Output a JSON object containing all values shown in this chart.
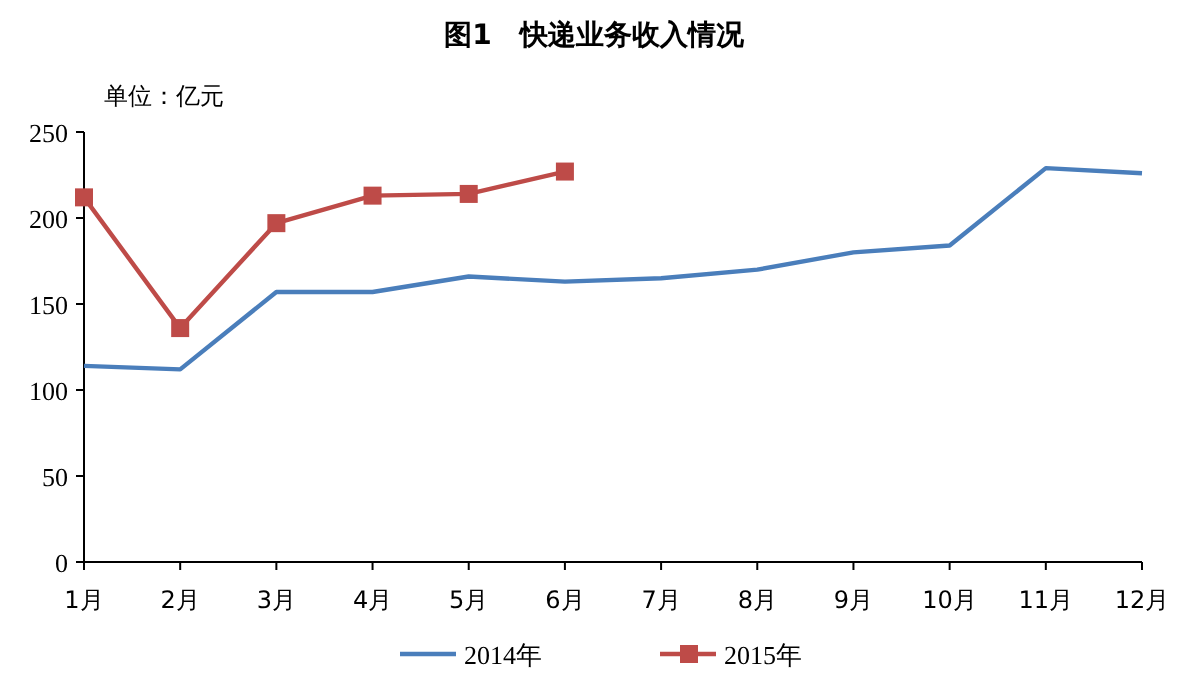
{
  "chart_data": {
    "type": "line",
    "title": "图1　快递业务收入情况",
    "annotations": [
      "单位：亿元"
    ],
    "categories": [
      "1月",
      "2月",
      "3月",
      "4月",
      "5月",
      "6月",
      "7月",
      "8月",
      "9月",
      "10月",
      "11月",
      "12月"
    ],
    "series": [
      {
        "name": "2014年",
        "color": "#4a7ebb",
        "marker": "none",
        "values": [
          114,
          112,
          157,
          157,
          166,
          163,
          165,
          170,
          180,
          184,
          229,
          226
        ]
      },
      {
        "name": "2015年",
        "color": "#be4b48",
        "marker": "square",
        "values": [
          212,
          136,
          197,
          213,
          214,
          227,
          null,
          null,
          null,
          null,
          null,
          null
        ]
      }
    ],
    "ylim": [
      0,
      250
    ],
    "yticks": [
      0,
      50,
      100,
      150,
      200,
      250
    ],
    "grid": false,
    "legend": "bottom",
    "line_style": "solid"
  }
}
